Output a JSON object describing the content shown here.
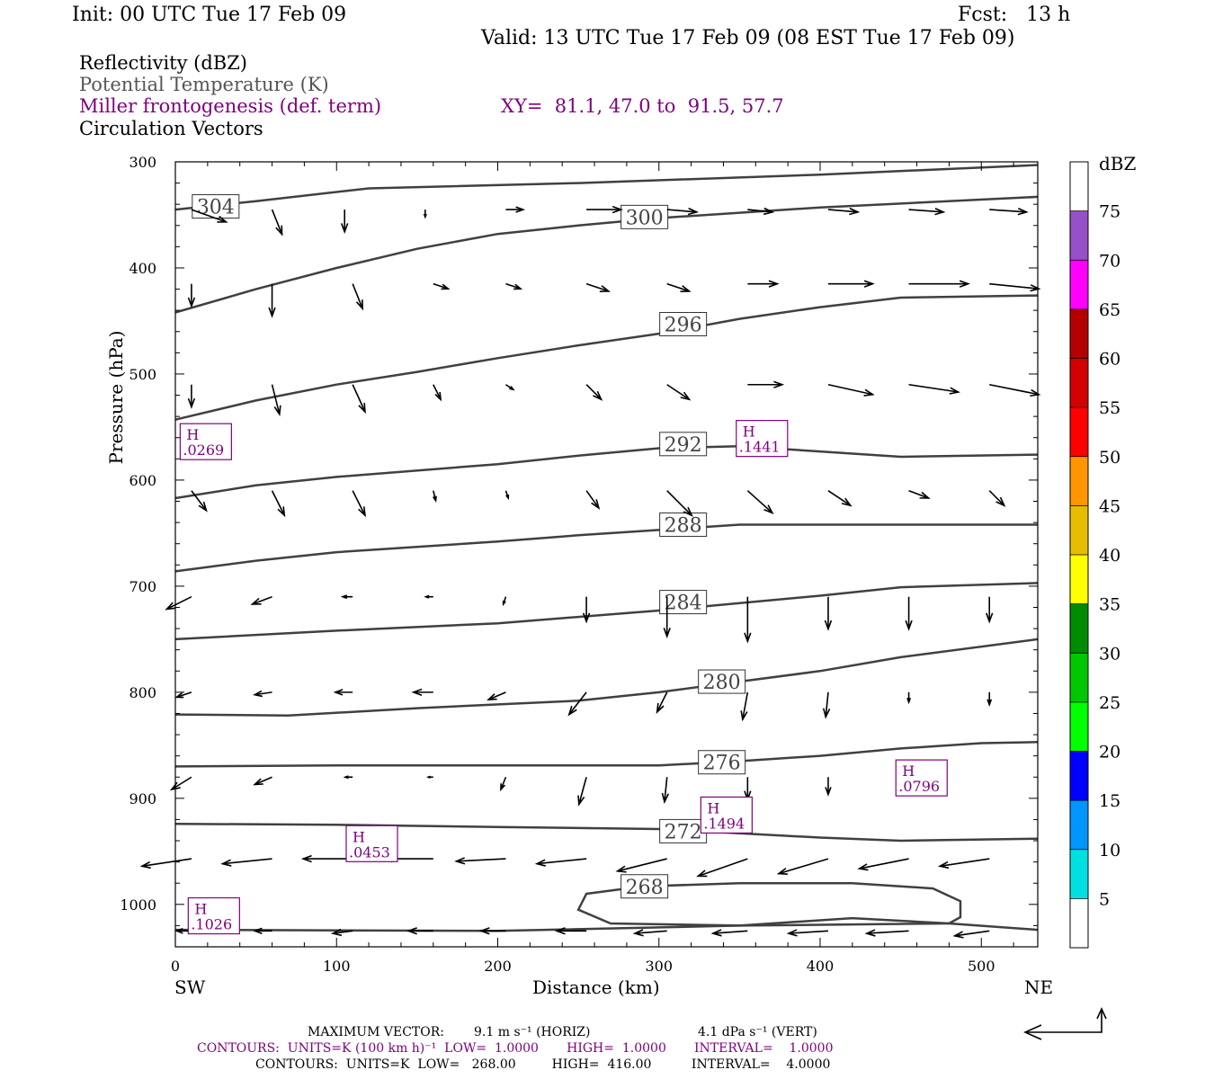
{
  "header": {
    "init": "Init: 00 UTC Tue 17 Feb 09",
    "fcst": "Fcst:   13 h",
    "valid": "Valid: 13 UTC Tue 17 Feb 09 (08 EST Tue 17 Feb 09)"
  },
  "legend": {
    "reflectivity": "Reflectivity (dBZ)",
    "theta": "Potential Temperature (K)",
    "miller": "Miller frontogenesis (def. term)",
    "xy": "XY=  81.1, 47.0 to  91.5, 57.7",
    "vectors": "Circulation Vectors"
  },
  "footer": {
    "max_vector_label": "MAXIMUM VECTOR:",
    "max_vector_horiz": "9.1 m s⁻¹ (HORIZ)",
    "max_vector_vert": "4.1 dPa s⁻¹ (VERT)",
    "contours1": "CONTOURS:  UNITS=K (100 km h)⁻¹  LOW=  1.0000       HIGH=  1.0000       INTERVAL=    1.0000",
    "contours2": "CONTOURS:  UNITS=K  LOW=   268.00         HIGH=  416.00          INTERVAL=    4.0000"
  },
  "colors": {
    "frame": "#000000",
    "theta_contour": "#404040",
    "purple": "#800080",
    "gray_text": "#555555"
  },
  "chart_data": {
    "type": "cross-section",
    "xlabel": "Distance (km)",
    "ylabel": "Pressure (hPa)",
    "x_range": [
      0,
      535
    ],
    "y_range": [
      300,
      1040
    ],
    "x_ticks": [
      0,
      100,
      200,
      300,
      400,
      500
    ],
    "y_ticks": [
      300,
      400,
      500,
      600,
      700,
      800,
      900,
      1000
    ],
    "left_end_label": "SW",
    "right_end_label": "NE",
    "theta_contours": [
      {
        "label": "304",
        "label_at": [
          25,
          342
        ],
        "points": [
          [
            0,
            345
          ],
          [
            50,
            337
          ],
          [
            120,
            325
          ],
          [
            250,
            320
          ],
          [
            400,
            312
          ],
          [
            535,
            303
          ]
        ]
      },
      {
        "label": "300",
        "label_at": [
          291,
          352
        ],
        "points": [
          [
            0,
            442
          ],
          [
            50,
            420
          ],
          [
            100,
            400
          ],
          [
            150,
            382
          ],
          [
            200,
            368
          ],
          [
            250,
            360
          ],
          [
            300,
            353
          ],
          [
            350,
            348
          ],
          [
            400,
            343
          ],
          [
            535,
            333
          ]
        ]
      },
      {
        "label": "296",
        "label_at": [
          315,
          453
        ],
        "points": [
          [
            0,
            543
          ],
          [
            50,
            525
          ],
          [
            100,
            510
          ],
          [
            150,
            498
          ],
          [
            200,
            485
          ],
          [
            250,
            473
          ],
          [
            300,
            462
          ],
          [
            350,
            448
          ],
          [
            400,
            437
          ],
          [
            450,
            428
          ],
          [
            535,
            426
          ]
        ]
      },
      {
        "label": "292",
        "label_at": [
          315,
          566
        ],
        "points": [
          [
            0,
            617
          ],
          [
            50,
            605
          ],
          [
            100,
            597
          ],
          [
            200,
            585
          ],
          [
            250,
            577
          ],
          [
            300,
            570
          ],
          [
            350,
            568
          ],
          [
            400,
            573
          ],
          [
            450,
            578
          ],
          [
            535,
            576
          ]
        ]
      },
      {
        "label": "288",
        "label_at": [
          315,
          642
        ],
        "points": [
          [
            0,
            686
          ],
          [
            50,
            676
          ],
          [
            100,
            668
          ],
          [
            200,
            658
          ],
          [
            250,
            652
          ],
          [
            300,
            647
          ],
          [
            350,
            642
          ],
          [
            400,
            642
          ],
          [
            535,
            642
          ]
        ]
      },
      {
        "label": "284",
        "label_at": [
          315,
          715
        ],
        "points": [
          [
            0,
            750
          ],
          [
            100,
            742
          ],
          [
            200,
            735
          ],
          [
            300,
            723
          ],
          [
            350,
            716
          ],
          [
            400,
            709
          ],
          [
            450,
            701
          ],
          [
            535,
            697
          ]
        ]
      },
      {
        "label": "280",
        "label_at": [
          339,
          790
        ],
        "points": [
          [
            0,
            821
          ],
          [
            70,
            822
          ],
          [
            150,
            815
          ],
          [
            250,
            808
          ],
          [
            300,
            800
          ],
          [
            340,
            792
          ],
          [
            400,
            780
          ],
          [
            450,
            767
          ],
          [
            535,
            750
          ]
        ]
      },
      {
        "label": "276",
        "label_at": [
          339,
          866
        ],
        "points": [
          [
            0,
            870
          ],
          [
            100,
            869
          ],
          [
            200,
            869
          ],
          [
            300,
            869
          ],
          [
            350,
            865
          ],
          [
            400,
            860
          ],
          [
            450,
            853
          ],
          [
            500,
            848
          ],
          [
            535,
            847
          ]
        ]
      },
      {
        "label": "272",
        "label_at": [
          315,
          931
        ],
        "points": [
          [
            0,
            924
          ],
          [
            100,
            925
          ],
          [
            200,
            927
          ],
          [
            300,
            929
          ],
          [
            350,
            933
          ],
          [
            400,
            937
          ],
          [
            450,
            940
          ],
          [
            535,
            938
          ]
        ]
      },
      {
        "label": "268",
        "label_at": [
          291,
          983
        ],
        "closed": true,
        "points": [
          [
            255,
            990
          ],
          [
            290,
            983
          ],
          [
            350,
            980
          ],
          [
            420,
            980
          ],
          [
            470,
            985
          ],
          [
            487,
            997
          ],
          [
            487,
            1012
          ],
          [
            480,
            1018
          ],
          [
            350,
            1020
          ],
          [
            270,
            1018
          ],
          [
            250,
            1005
          ]
        ]
      },
      {
        "label": "",
        "points": [
          [
            0,
            1024
          ],
          [
            200,
            1025
          ],
          [
            350,
            1020
          ],
          [
            420,
            1013
          ],
          [
            480,
            1018
          ],
          [
            535,
            1024
          ]
        ]
      }
    ],
    "frontogenesis_maxima": [
      {
        "label": "H",
        "value": ".0269",
        "x": 3,
        "p": 568
      },
      {
        "label": "H",
        "value": ".1441",
        "x": 348,
        "p": 565
      },
      {
        "label": "H",
        "value": ".0796",
        "x": 447,
        "p": 885
      },
      {
        "label": "H",
        "value": ".1494",
        "x": 326,
        "p": 920
      },
      {
        "label": "H",
        "value": ".0453",
        "x": 106,
        "p": 947
      },
      {
        "label": "H",
        "value": ".1026",
        "x": 8,
        "p": 1015
      }
    ],
    "vectors": [
      {
        "p": 345,
        "v": [
          [
            0,
            0.7,
            0.25
          ],
          [
            50,
            0.2,
            0.5
          ],
          [
            95,
            0,
            0.45
          ],
          [
            145,
            0,
            0.15
          ],
          [
            195,
            0.35,
            0
          ],
          [
            245,
            0.7,
            0
          ],
          [
            295,
            0.6,
            0.05
          ],
          [
            345,
            0.5,
            0.05
          ],
          [
            395,
            0.6,
            0.05
          ],
          [
            445,
            0.7,
            0.05
          ],
          [
            495,
            0.75,
            0.05
          ]
        ]
      },
      {
        "p": 415,
        "v": [
          [
            0,
            0,
            0.45
          ],
          [
            50,
            0,
            0.65
          ],
          [
            100,
            0.2,
            0.5
          ],
          [
            150,
            0.3,
            0.1
          ],
          [
            195,
            0.3,
            0.1
          ],
          [
            245,
            0.45,
            0.15
          ],
          [
            295,
            0.45,
            0.15
          ],
          [
            345,
            0.6,
            0
          ],
          [
            395,
            0.9,
            0
          ],
          [
            445,
            1.2,
            0
          ],
          [
            495,
            1,
            0.1
          ]
        ]
      },
      {
        "p": 510,
        "v": [
          [
            0,
            0,
            0.45
          ],
          [
            50,
            0.15,
            0.6
          ],
          [
            100,
            0.25,
            0.55
          ],
          [
            150,
            0.15,
            0.3
          ],
          [
            195,
            0.15,
            0.1
          ],
          [
            245,
            0.3,
            0.3
          ],
          [
            295,
            0.45,
            0.3
          ],
          [
            345,
            0.7,
            0
          ],
          [
            395,
            0.9,
            0.2
          ],
          [
            445,
            1,
            0.15
          ],
          [
            495,
            1,
            0.2
          ]
        ]
      },
      {
        "p": 610,
        "v": [
          [
            0,
            0.3,
            0.4
          ],
          [
            50,
            0.25,
            0.5
          ],
          [
            100,
            0.25,
            0.5
          ],
          [
            150,
            0.05,
            0.2
          ],
          [
            195,
            0.05,
            0.15
          ],
          [
            245,
            0.25,
            0.35
          ],
          [
            295,
            0.5,
            0.5
          ],
          [
            345,
            0.5,
            0.45
          ],
          [
            395,
            0.45,
            0.3
          ],
          [
            445,
            0.4,
            0.15
          ],
          [
            495,
            0.3,
            0.3
          ]
        ]
      },
      {
        "p": 710,
        "v": [
          [
            0,
            -0.5,
            0.25
          ],
          [
            50,
            -0.4,
            0.15
          ],
          [
            100,
            -0.2,
            0
          ],
          [
            150,
            -0.15,
            0
          ],
          [
            195,
            -0.05,
            0.15
          ],
          [
            245,
            0,
            0.5
          ],
          [
            295,
            0,
            0.8
          ],
          [
            345,
            0,
            0.9
          ],
          [
            395,
            0,
            0.65
          ],
          [
            445,
            0,
            0.65
          ],
          [
            495,
            0,
            0.5
          ]
        ]
      },
      {
        "p": 800,
        "v": [
          [
            0,
            -0.3,
            0.1
          ],
          [
            50,
            -0.35,
            0.05
          ],
          [
            100,
            -0.35,
            0
          ],
          [
            150,
            -0.4,
            0
          ],
          [
            195,
            -0.35,
            0.15
          ],
          [
            245,
            -0.35,
            0.45
          ],
          [
            295,
            -0.2,
            0.4
          ],
          [
            345,
            -0.1,
            0.55
          ],
          [
            395,
            -0.05,
            0.5
          ],
          [
            445,
            0,
            0.2
          ],
          [
            495,
            0,
            0.25
          ]
        ]
      },
      {
        "p": 880,
        "v": [
          [
            0,
            -0.4,
            0.25
          ],
          [
            50,
            -0.35,
            0.15
          ],
          [
            100,
            -0.15,
            0
          ],
          [
            150,
            -0.1,
            0
          ],
          [
            195,
            -0.1,
            0.25
          ],
          [
            245,
            -0.15,
            0.55
          ],
          [
            295,
            -0.05,
            0.5
          ],
          [
            345,
            0,
            0.45
          ],
          [
            395,
            0,
            0.35
          ],
          [
            445,
            0,
            0.05
          ],
          [
            495,
            0,
            0
          ]
        ]
      },
      {
        "p": 957,
        "v": [
          [
            0,
            -1,
            0.15
          ],
          [
            50,
            -1,
            0.1
          ],
          [
            100,
            -1,
            0
          ],
          [
            150,
            -1,
            0
          ],
          [
            195,
            -1,
            0.05
          ],
          [
            245,
            -1,
            0.1
          ],
          [
            295,
            -1,
            0.25
          ],
          [
            345,
            -1,
            0.35
          ],
          [
            395,
            -1,
            0.3
          ],
          [
            445,
            -1,
            0.2
          ],
          [
            495,
            -1,
            0.15
          ]
        ]
      },
      {
        "p": 1025,
        "v": [
          [
            0,
            -0.3,
            0
          ],
          [
            50,
            -0.35,
            0
          ],
          [
            100,
            -0.4,
            0.05
          ],
          [
            150,
            -0.5,
            0
          ],
          [
            195,
            -0.5,
            0
          ],
          [
            245,
            -0.6,
            0
          ],
          [
            295,
            -0.65,
            0.05
          ],
          [
            345,
            -0.7,
            0.05
          ],
          [
            395,
            -0.8,
            0.05
          ],
          [
            445,
            -0.85,
            0.05
          ],
          [
            495,
            -0.7,
            0.1
          ]
        ]
      }
    ],
    "colorbar": {
      "unit": "dBZ",
      "levels": [
        5,
        10,
        15,
        20,
        25,
        30,
        35,
        40,
        45,
        50,
        55,
        60,
        65,
        70,
        75
      ],
      "colors": [
        "#ffffff",
        "#00e0e0",
        "#0096ff",
        "#0000ff",
        "#00ff00",
        "#00c800",
        "#008c00",
        "#ffff00",
        "#e6be00",
        "#ff9600",
        "#ff0000",
        "#d20000",
        "#b40000",
        "#ff00ff",
        "#9650c8",
        "#ffffff"
      ]
    }
  }
}
